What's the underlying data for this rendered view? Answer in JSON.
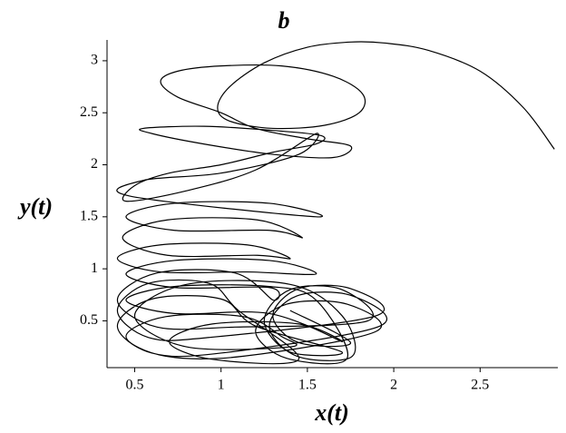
{
  "chart_data": {
    "type": "line",
    "title": "b",
    "x_label": "x(t)",
    "y_label": "y(t)",
    "xlim": [
      0.34,
      2.95
    ],
    "ylim": [
      0.05,
      3.2
    ],
    "xticks": [
      0.5,
      1,
      1.5,
      2,
      2.5
    ],
    "yticks": [
      0.5,
      1,
      1.5,
      2,
      2.5,
      3
    ],
    "color": "#000000",
    "x": [
      2.93,
      2.75,
      2.5,
      2.2,
      1.95,
      1.75,
      1.5,
      1.25,
      1.05,
      0.98,
      1.05,
      1.3,
      1.6,
      1.8,
      1.82,
      1.65,
      1.35,
      1.0,
      0.75,
      0.65,
      0.75,
      1.0,
      1.2,
      1.5,
      1.75,
      1.65,
      1.3,
      0.9,
      0.6,
      0.55,
      0.9,
      1.3,
      1.58,
      1.55,
      1.3,
      1.0,
      0.7,
      0.5,
      0.45,
      0.8,
      1.2,
      1.55,
      1.45,
      1.0,
      0.55,
      0.47,
      1.55,
      1.28,
      0.73,
      0.45,
      0.73,
      1.28,
      1.47,
      1.21,
      0.69,
      0.43,
      0.69,
      1.21,
      1.4,
      1.15,
      0.65,
      0.4,
      0.65,
      1.15,
      1.55,
      1.28,
      0.73,
      0.45,
      0.73,
      1.28,
      1.3,
      1.08,
      0.63,
      0.4,
      0.63,
      1.08,
      1.85,
      1.7,
      1.4,
      1.25,
      1.4,
      1.7,
      1.2,
      1.0,
      0.6,
      0.4,
      0.6,
      1.0,
      1.92,
      1.76,
      1.44,
      1.28,
      1.44,
      1.76,
      1.7,
      1.4,
      0.8,
      0.5,
      0.8,
      1.4,
      1.35,
      1.13,
      0.68,
      0.45,
      0.68,
      1.13,
      1.9,
      1.73,
      1.38,
      1.2,
      1.38,
      1.73,
      1.55,
      1.28,
      0.73,
      0.45,
      0.73,
      1.28,
      1.7,
      1.45,
      0.95,
      0.7,
      0.95,
      1.45,
      1.1,
      0.93,
      0.58,
      0.4,
      0.58,
      0.93,
      1.9,
      1.75,
      1.45,
      1.3,
      1.45,
      1.75,
      1.4
    ],
    "y": [
      2.15,
      2.55,
      2.9,
      3.1,
      3.17,
      3.18,
      3.13,
      2.98,
      2.75,
      2.55,
      2.42,
      2.35,
      2.38,
      2.5,
      2.68,
      2.85,
      2.95,
      2.95,
      2.9,
      2.8,
      2.65,
      2.5,
      2.35,
      2.25,
      2.18,
      2.07,
      2.1,
      2.2,
      2.3,
      2.35,
      2.37,
      2.33,
      2.28,
      2.2,
      2.12,
      2.0,
      1.92,
      1.8,
      1.65,
      1.75,
      1.95,
      2.3,
      2.1,
      1.92,
      1.85,
      1.7,
      1.5,
      1.63,
      1.63,
      1.5,
      1.37,
      1.37,
      1.3,
      1.47,
      1.47,
      1.3,
      1.13,
      1.13,
      1.1,
      1.23,
      1.23,
      1.1,
      0.97,
      0.97,
      0.95,
      1.08,
      1.08,
      0.95,
      0.82,
      0.82,
      0.7,
      0.96,
      0.96,
      0.7,
      0.44,
      0.44,
      0.5,
      0.8,
      0.8,
      0.5,
      0.2,
      0.2,
      0.45,
      0.71,
      0.71,
      0.45,
      0.19,
      0.19,
      0.45,
      0.74,
      0.74,
      0.45,
      0.16,
      0.16,
      0.55,
      0.85,
      0.85,
      0.55,
      0.25,
      0.25,
      0.35,
      0.54,
      0.54,
      0.35,
      0.16,
      0.16,
      0.4,
      0.66,
      0.66,
      0.4,
      0.14,
      0.14,
      0.7,
      0.83,
      0.83,
      0.7,
      0.57,
      0.57,
      0.3,
      0.47,
      0.47,
      0.3,
      0.13,
      0.13,
      0.6,
      0.86,
      0.86,
      0.6,
      0.34,
      0.34,
      0.55,
      0.81,
      0.81,
      0.55,
      0.29,
      0.29,
      0.6
    ]
  }
}
